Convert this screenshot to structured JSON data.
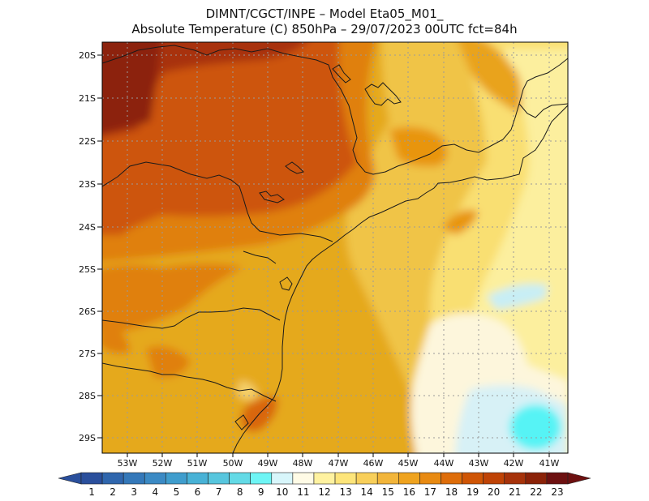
{
  "title": {
    "line1": "DIMNT/CGCT/INPE –  Model Eta05_M01_",
    "line2": "Absolute Temperature (C) 850hPa –  29/07/2023 00UTC fct=84h"
  },
  "axes": {
    "lat_ticks": [
      "20S",
      "21S",
      "22S",
      "23S",
      "24S",
      "25S",
      "26S",
      "27S",
      "28S",
      "29S"
    ],
    "lon_ticks": [
      "53W",
      "52W",
      "51W",
      "50W",
      "49W",
      "48W",
      "47W",
      "46W",
      "45W",
      "44W",
      "43W",
      "42W",
      "41W"
    ]
  },
  "colorbar": {
    "labels": [
      "1",
      "2",
      "3",
      "4",
      "5",
      "6",
      "7",
      "8",
      "9",
      "10",
      "11",
      "12",
      "13",
      "14",
      "15",
      "16",
      "17",
      "18",
      "19",
      "20",
      "21",
      "22",
      "23"
    ],
    "colors": [
      "#2a4f9c",
      "#2f66ad",
      "#3478b9",
      "#3b8ac4",
      "#3f9dcd",
      "#48b2d6",
      "#57c6de",
      "#63dae6",
      "#6ef5f5",
      "#d8f6fb",
      "#fffbe6",
      "#fff2a0",
      "#fde57a",
      "#f8cf5a",
      "#f2b53a",
      "#efa31f",
      "#e88a12",
      "#de6d0a",
      "#cf5505",
      "#bf4306",
      "#a6320a",
      "#8b2208",
      "#6d1010"
    ]
  }
}
